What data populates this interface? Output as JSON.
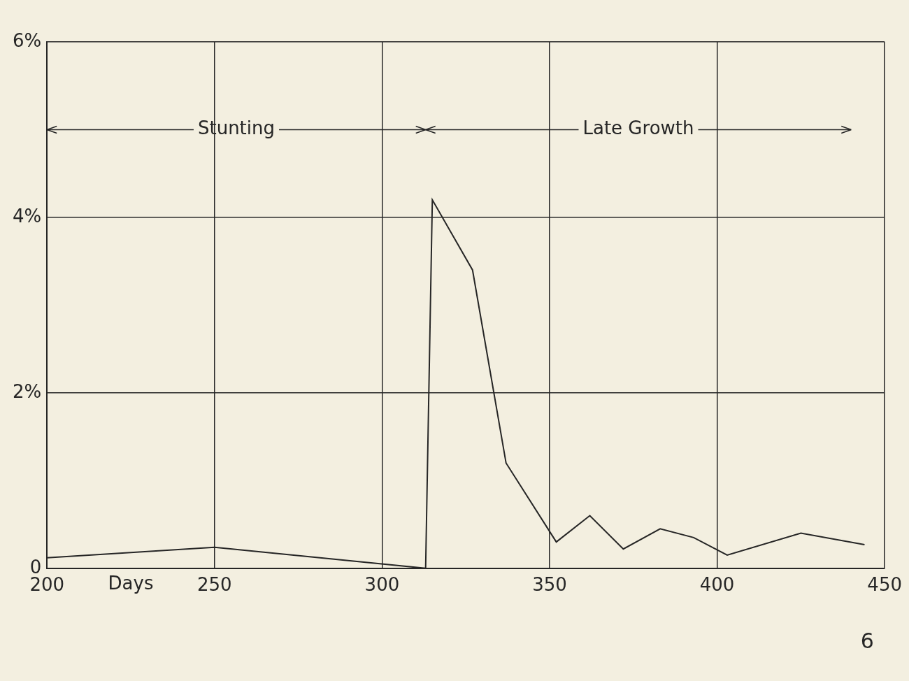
{
  "chart_data": {
    "type": "line",
    "x": [
      200,
      250,
      313,
      315,
      327,
      337,
      352,
      362,
      372,
      383,
      393,
      403,
      425,
      444
    ],
    "values": [
      0.12,
      0.24,
      0,
      4.2,
      3.4,
      1.2,
      0.3,
      0.6,
      0.22,
      0.45,
      0.35,
      0.15,
      0.4,
      0.27
    ],
    "color": "#262626",
    "xlim": [
      200,
      450
    ],
    "xticks": [
      200,
      250,
      300,
      350,
      400,
      450
    ],
    "ylim": [
      0,
      6
    ],
    "yticks": [
      0,
      {
        "value": 2,
        "label": "2%"
      },
      {
        "value": 4,
        "label": "4%"
      },
      {
        "value": 6,
        "label": "6%"
      }
    ],
    "grid": true,
    "annotations": [
      {
        "text": "Stunting",
        "x": [
          200,
          313
        ],
        "y": 5
      },
      {
        "text": "Late Growth",
        "x": [
          313,
          440
        ],
        "y": 5
      },
      {
        "text": "Days",
        "x": 225
      }
    ],
    "caption": "6"
  }
}
